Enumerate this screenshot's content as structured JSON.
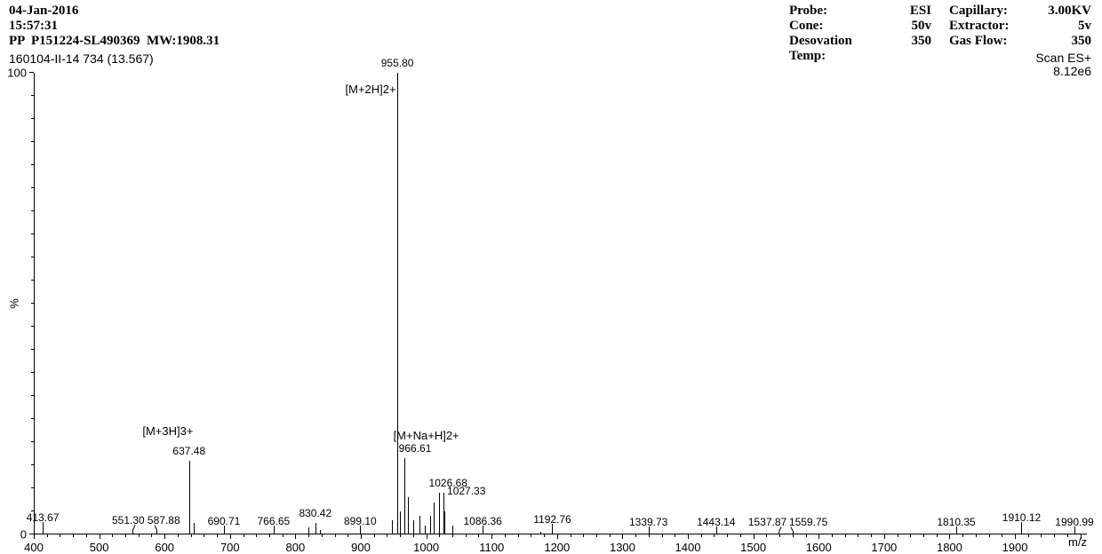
{
  "header": {
    "date": "04-Jan-2016",
    "time": "15:57:31",
    "sample": "PP  P151224-SL490369  MW:1908.31",
    "scan_id": "160104-II-14 734 (13.567)"
  },
  "params": {
    "left": [
      {
        "label": "Probe:",
        "value": "ESI"
      },
      {
        "label": "Cone:",
        "value": "50v"
      },
      {
        "label": "Desovation  Temp:",
        "value": "350"
      }
    ],
    "right": [
      {
        "label": "Capillary:",
        "value": "3.00KV"
      },
      {
        "label": "Extractor:",
        "value": "5v"
      },
      {
        "label": "Gas Flow:",
        "value": "350"
      }
    ]
  },
  "scan_mode": {
    "line1": "Scan ES+",
    "line2": "8.12e6"
  },
  "axes": {
    "x": {
      "min": 400,
      "max": 2010,
      "major_step": 100,
      "minor_step": 20,
      "label": "m/z"
    },
    "y": {
      "min": 0,
      "max": 100,
      "ticks": [
        0,
        100
      ],
      "minor_step": 5,
      "label": "%"
    }
  },
  "annotations": [
    {
      "text": "[M+2H]2+",
      "mz": 915,
      "pct": 95
    },
    {
      "text": "[M+3H]3+",
      "mz": 605,
      "pct": 21
    },
    {
      "text": "[M+Na+H]2+",
      "mz": 1000,
      "pct": 20
    }
  ],
  "peaks": [
    {
      "mz": 413.67,
      "pct": 1.5,
      "label": "413.67",
      "label_dy": 0,
      "label_dx": 0
    },
    {
      "mz": 551.3,
      "pct": 1,
      "label": "551.30",
      "label_dy": 0,
      "label_dx": -5
    },
    {
      "mz": 587.88,
      "pct": 1,
      "label": "587.88",
      "label_dy": 0,
      "label_dx": 8
    },
    {
      "mz": 637.48,
      "pct": 16,
      "label": "637.48",
      "label_dy": 0,
      "label_dx": 0
    },
    {
      "mz": 644,
      "pct": 2.5
    },
    {
      "mz": 690.71,
      "pct": 0.7,
      "label": "690.71",
      "label_dy": 0,
      "label_dx": 0
    },
    {
      "mz": 766.65,
      "pct": 0.7,
      "label": "766.65",
      "label_dy": 0,
      "label_dx": 0
    },
    {
      "mz": 830.42,
      "pct": 2.5,
      "label": "830.42",
      "label_dy": 0,
      "label_dx": 0
    },
    {
      "mz": 820,
      "pct": 1.5
    },
    {
      "mz": 838,
      "pct": 1
    },
    {
      "mz": 899.1,
      "pct": 0.7,
      "label": "899.10",
      "label_dy": 0,
      "label_dx": 0
    },
    {
      "mz": 947,
      "pct": 3
    },
    {
      "mz": 955.8,
      "pct": 100,
      "label": "955.80",
      "label_dy": 0,
      "label_dx": 0
    },
    {
      "mz": 960,
      "pct": 5
    },
    {
      "mz": 966.61,
      "pct": 16.5,
      "label": "966.61",
      "label_dy": 0,
      "label_dx": 12
    },
    {
      "mz": 972,
      "pct": 8
    },
    {
      "mz": 980,
      "pct": 3
    },
    {
      "mz": 990,
      "pct": 4
    },
    {
      "mz": 998,
      "pct": 2
    },
    {
      "mz": 1006,
      "pct": 4
    },
    {
      "mz": 1012,
      "pct": 7
    },
    {
      "mz": 1020,
      "pct": 9
    },
    {
      "mz": 1026.68,
      "pct": 9,
      "label": "1026.68",
      "label_dy": 0,
      "label_dx": 5
    },
    {
      "mz": 1027.33,
      "pct": 5,
      "label": "1027.33",
      "label_dy": -12,
      "label_dx": 25
    },
    {
      "mz": 1040,
      "pct": 2
    },
    {
      "mz": 1086.36,
      "pct": 0.7,
      "label": "1086.36",
      "label_dy": 0,
      "label_dx": 0
    },
    {
      "mz": 1192.76,
      "pct": 1.2,
      "label": "1192.76",
      "label_dy": 0,
      "label_dx": 0
    },
    {
      "mz": 1175,
      "pct": 0.5
    },
    {
      "mz": 1339.73,
      "pct": 0.5,
      "label": "1339.73",
      "label_dy": 0,
      "label_dx": 0
    },
    {
      "mz": 1443.14,
      "pct": 0.5,
      "label": "1443.14",
      "label_dy": 0,
      "label_dx": 0
    },
    {
      "mz": 1537.87,
      "pct": 0.5,
      "label": "1537.87",
      "label_dy": 0,
      "label_dx": -12
    },
    {
      "mz": 1559.75,
      "pct": 0.5,
      "label": "1559.75",
      "label_dy": 0,
      "label_dx": 18
    },
    {
      "mz": 1810.35,
      "pct": 0.5,
      "label": "1810.35",
      "label_dy": 0,
      "label_dx": 0
    },
    {
      "mz": 1910.12,
      "pct": 1.5,
      "label": "1910.12",
      "label_dy": 0,
      "label_dx": 0
    },
    {
      "mz": 1990.99,
      "pct": 0.5,
      "label": "1990.99",
      "label_dy": 0,
      "label_dx": 0
    }
  ],
  "colors": {
    "fg": "#000000",
    "bg": "#ffffff"
  }
}
